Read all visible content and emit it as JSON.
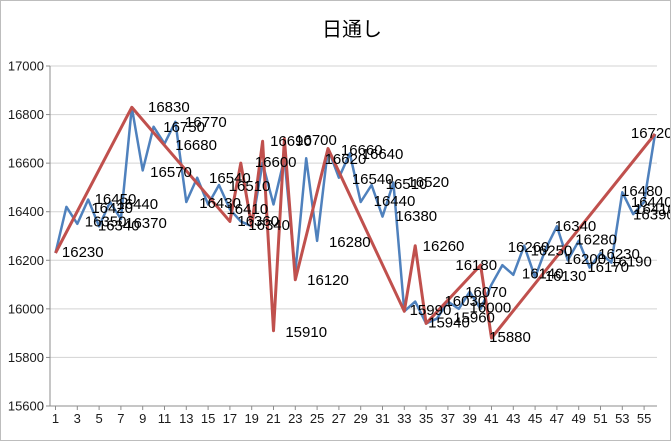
{
  "title": "日通し",
  "chart_data": {
    "type": "line",
    "title": "日通し",
    "xlabel": "",
    "ylabel": "",
    "ylim": [
      15600,
      17000
    ],
    "grid": "horizontal",
    "legend": "none",
    "x_categories": [
      1,
      2,
      3,
      4,
      5,
      6,
      7,
      8,
      9,
      10,
      11,
      12,
      13,
      14,
      15,
      16,
      17,
      18,
      19,
      20,
      21,
      22,
      23,
      24,
      25,
      26,
      27,
      28,
      29,
      30,
      31,
      32,
      33,
      34,
      35,
      36,
      37,
      38,
      39,
      40,
      41,
      42,
      43,
      44,
      45,
      46,
      47,
      48,
      49,
      50,
      51,
      52,
      53,
      54,
      55,
      56
    ],
    "axes": {
      "y_ticks": [
        17000,
        16800,
        16600,
        16400,
        16200,
        16000,
        15800,
        15600
      ],
      "x_ticks": [
        1,
        3,
        5,
        7,
        9,
        11,
        13,
        15,
        17,
        19,
        21,
        23,
        25,
        27,
        29,
        31,
        33,
        35,
        37,
        39,
        41,
        43,
        45,
        47,
        49,
        51,
        53,
        55
      ]
    },
    "series": [
      {
        "name": "price-line-blue",
        "color": "#4F81BD",
        "values": [
          16230,
          16420,
          16350,
          16450,
          16340,
          16440,
          16370,
          16830,
          16570,
          16750,
          16680,
          16770,
          16440,
          16540,
          16430,
          16510,
          16410,
          16360,
          16340,
          16600,
          16430,
          16620,
          16150,
          16620,
          16280,
          16660,
          16540,
          16640,
          16440,
          16510,
          16380,
          16520,
          15990,
          16030,
          15940,
          15960,
          16030,
          16000,
          16070,
          16000,
          16100,
          16180,
          16140,
          16260,
          16130,
          16250,
          16340,
          16200,
          16280,
          16170,
          16230,
          16190,
          16480,
          16390,
          16440,
          16720
        ]
      },
      {
        "name": "swing-line-red",
        "color": "#C0504D",
        "pivots": [
          [
            1,
            16230
          ],
          [
            8,
            16830
          ],
          [
            17,
            16360
          ],
          [
            18,
            16600
          ],
          [
            19,
            16340
          ],
          [
            20,
            16690
          ],
          [
            21,
            15910
          ],
          [
            22,
            16700
          ],
          [
            23,
            16120
          ],
          [
            26,
            16660
          ],
          [
            33,
            15990
          ],
          [
            34,
            16260
          ],
          [
            35,
            15940
          ],
          [
            40,
            16180
          ],
          [
            41,
            15880
          ],
          [
            56,
            16720
          ]
        ]
      }
    ],
    "labels": [
      {
        "t": "16230",
        "c": 3.5,
        "v": 16235
      },
      {
        "t": "16420",
        "c": 6.2,
        "v": 16416
      },
      {
        "t": "16450",
        "c": 6.5,
        "v": 16452
      },
      {
        "t": "16350",
        "c": 5.6,
        "v": 16360
      },
      {
        "t": "16340",
        "c": 6.8,
        "v": 16344
      },
      {
        "t": "16440",
        "c": 8.5,
        "v": 16432
      },
      {
        "t": "16370",
        "c": 9.3,
        "v": 16354
      },
      {
        "t": "16830",
        "c": 11.4,
        "v": 16831
      },
      {
        "t": "16570",
        "c": 11.6,
        "v": 16564
      },
      {
        "t": "16750",
        "c": 12.8,
        "v": 16749
      },
      {
        "t": "16680",
        "c": 13.9,
        "v": 16675
      },
      {
        "t": "16770",
        "c": 14.8,
        "v": 16769
      },
      {
        "t": "16540",
        "c": 17.0,
        "v": 16539
      },
      {
        "t": "16430",
        "c": 16.1,
        "v": 16436
      },
      {
        "t": "16510",
        "c": 18.8,
        "v": 16506
      },
      {
        "t": "16410",
        "c": 18.6,
        "v": 16411
      },
      {
        "t": "16360",
        "c": 19.6,
        "v": 16362
      },
      {
        "t": "16340",
        "c": 20.6,
        "v": 16345
      },
      {
        "t": "16600",
        "c": 21.2,
        "v": 16605
      },
      {
        "t": "16690",
        "c": 22.6,
        "v": 16691
      },
      {
        "t": "16700",
        "c": 24.9,
        "v": 16695
      },
      {
        "t": "15910",
        "c": 24.0,
        "v": 15905
      },
      {
        "t": "16120",
        "c": 26.0,
        "v": 16119
      },
      {
        "t": "16280",
        "c": 28.0,
        "v": 16275
      },
      {
        "t": "16620",
        "c": 27.6,
        "v": 16617
      },
      {
        "t": "16660",
        "c": 29.1,
        "v": 16655
      },
      {
        "t": "16640",
        "c": 31.0,
        "v": 16638
      },
      {
        "t": "16540",
        "c": 30.1,
        "v": 16535
      },
      {
        "t": "16510",
        "c": 33.2,
        "v": 16514
      },
      {
        "t": "16520",
        "c": 35.2,
        "v": 16522
      },
      {
        "t": "16440",
        "c": 32.1,
        "v": 16444
      },
      {
        "t": "16380",
        "c": 34.1,
        "v": 16382
      },
      {
        "t": "16260",
        "c": 36.6,
        "v": 16259
      },
      {
        "t": "15990",
        "c": 35.4,
        "v": 15995
      },
      {
        "t": "15940",
        "c": 37.1,
        "v": 15944
      },
      {
        "t": "16030",
        "c": 38.6,
        "v": 16032
      },
      {
        "t": "15960",
        "c": 39.4,
        "v": 15965
      },
      {
        "t": "16000",
        "c": 40.9,
        "v": 16005
      },
      {
        "t": "16070",
        "c": 40.5,
        "v": 16069
      },
      {
        "t": "16180",
        "c": 39.6,
        "v": 16181
      },
      {
        "t": "15880",
        "c": 42.7,
        "v": 15884
      },
      {
        "t": "16260",
        "c": 44.4,
        "v": 16255
      },
      {
        "t": "16250",
        "c": 46.5,
        "v": 16240
      },
      {
        "t": "16140",
        "c": 45.7,
        "v": 16145
      },
      {
        "t": "16130",
        "c": 47.8,
        "v": 16135
      },
      {
        "t": "16340",
        "c": 48.7,
        "v": 16341
      },
      {
        "t": "16200",
        "c": 49.6,
        "v": 16205
      },
      {
        "t": "16280",
        "c": 50.6,
        "v": 16285
      },
      {
        "t": "16170",
        "c": 51.7,
        "v": 16172
      },
      {
        "t": "16230",
        "c": 52.7,
        "v": 16226
      },
      {
        "t": "16190",
        "c": 53.8,
        "v": 16196
      },
      {
        "t": "16480",
        "c": 54.8,
        "v": 16485
      },
      {
        "t": "16440",
        "c": 55.7,
        "v": 16440
      },
      {
        "t": "16410",
        "c": 56.0,
        "v": 16411
      },
      {
        "t": "16390",
        "c": 55.9,
        "v": 16388
      },
      {
        "t": "16720",
        "c": 55.7,
        "v": 16724
      }
    ],
    "colors": {
      "grid": "#D3D3D3",
      "axis": "#8C8C8C",
      "tick_text": "#1a1a1a",
      "label_text": "#000000",
      "background": "#FFFFFF"
    }
  }
}
